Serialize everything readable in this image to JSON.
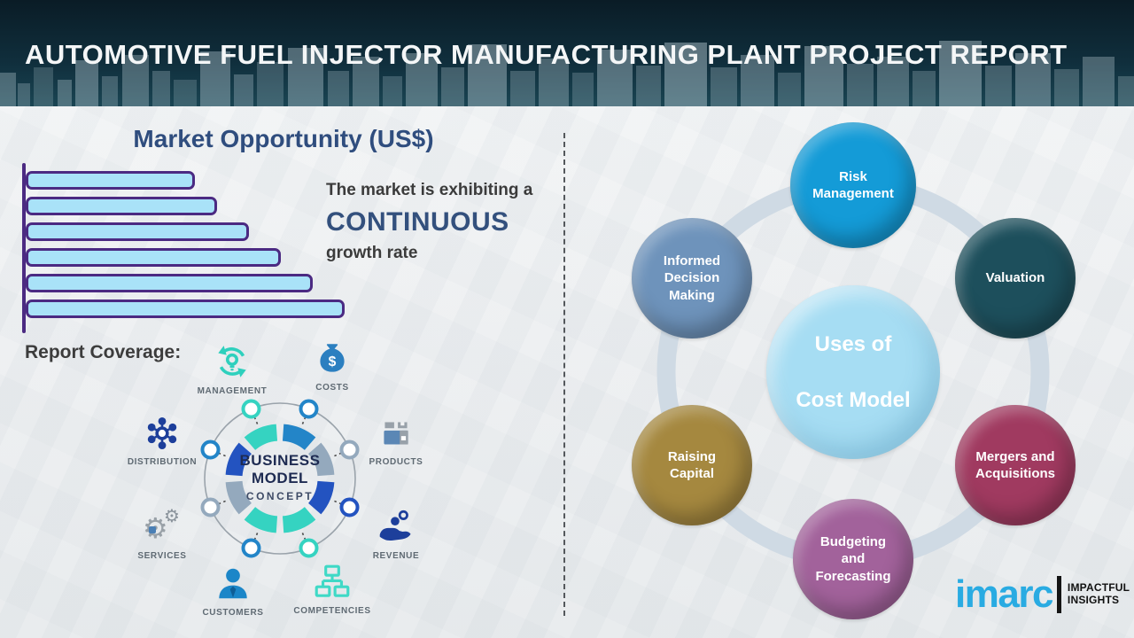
{
  "header": {
    "title": "AUTOMOTIVE FUEL INJECTOR MANUFACTURING PLANT PROJECT REPORT"
  },
  "market_opportunity": {
    "title": "Market Opportunity (US$)",
    "caption_line1": "The market is exhibiting a",
    "caption_line2": "CONTINUOUS",
    "caption_line3": "growth rate"
  },
  "chart_data": {
    "type": "bar",
    "orientation": "horizontal",
    "title": "Market Opportunity (US$)",
    "categories": [
      "",
      "",
      "",
      "",
      "",
      ""
    ],
    "values": [
      53,
      60,
      70,
      80,
      90,
      100
    ],
    "value_unit": "relative length, % of longest bar (no numeric axis labels shown)",
    "bar_fill_color": "#a9e2f8",
    "bar_border_color": "#4b2a82",
    "axis_labels_shown": false,
    "annotation": "The market is exhibiting a CONTINUOUS growth rate"
  },
  "report_coverage": {
    "heading": "Report Coverage:",
    "center_line1": "BUSINESS",
    "center_line2": "MODEL",
    "center_line3": "CONCEPT",
    "items": [
      {
        "label": "MANAGEMENT",
        "icon": "management-cycle-icon",
        "color": "#2ed0bd"
      },
      {
        "label": "COSTS",
        "icon": "money-bag-icon",
        "color": "#2b7fc0"
      },
      {
        "label": "DISTRIBUTION",
        "icon": "network-hub-icon",
        "color": "#1d3f9b"
      },
      {
        "label": "PRODUCTS",
        "icon": "product-box-icon",
        "color": "#5b87b5"
      },
      {
        "label": "SERVICES",
        "icon": "gears-icon",
        "color": "#99a1a8"
      },
      {
        "label": "REVENUE",
        "icon": "hand-coins-icon",
        "color": "#1d3f9b"
      },
      {
        "label": "CUSTOMERS",
        "icon": "person-icon",
        "color": "#1b86c8"
      },
      {
        "label": "COMPETENCIES",
        "icon": "org-chart-icon",
        "color": "#3fd9c6"
      }
    ]
  },
  "cost_model": {
    "center_line1": "Uses of",
    "center_line2": "Cost Model",
    "center_color": "#a6ddf3",
    "nodes": [
      {
        "label": "Risk\nManagement",
        "color": "#149bd7"
      },
      {
        "label": "Valuation",
        "color": "#1d4f5c"
      },
      {
        "label": "Informed\nDecision\nMaking",
        "color": "#6e93bb"
      },
      {
        "label": "Raising\nCapital",
        "color": "#a5883f"
      },
      {
        "label": "Budgeting\nand\nForecasting",
        "color": "#a2629b"
      },
      {
        "label": "Mergers and\nAcquisitions",
        "color": "#a03a60"
      }
    ]
  },
  "logo": {
    "brand": "imarc",
    "brand_color": "#29abe2",
    "tagline_line1": "IMPACTFUL",
    "tagline_line2": "INSIGHTS"
  }
}
